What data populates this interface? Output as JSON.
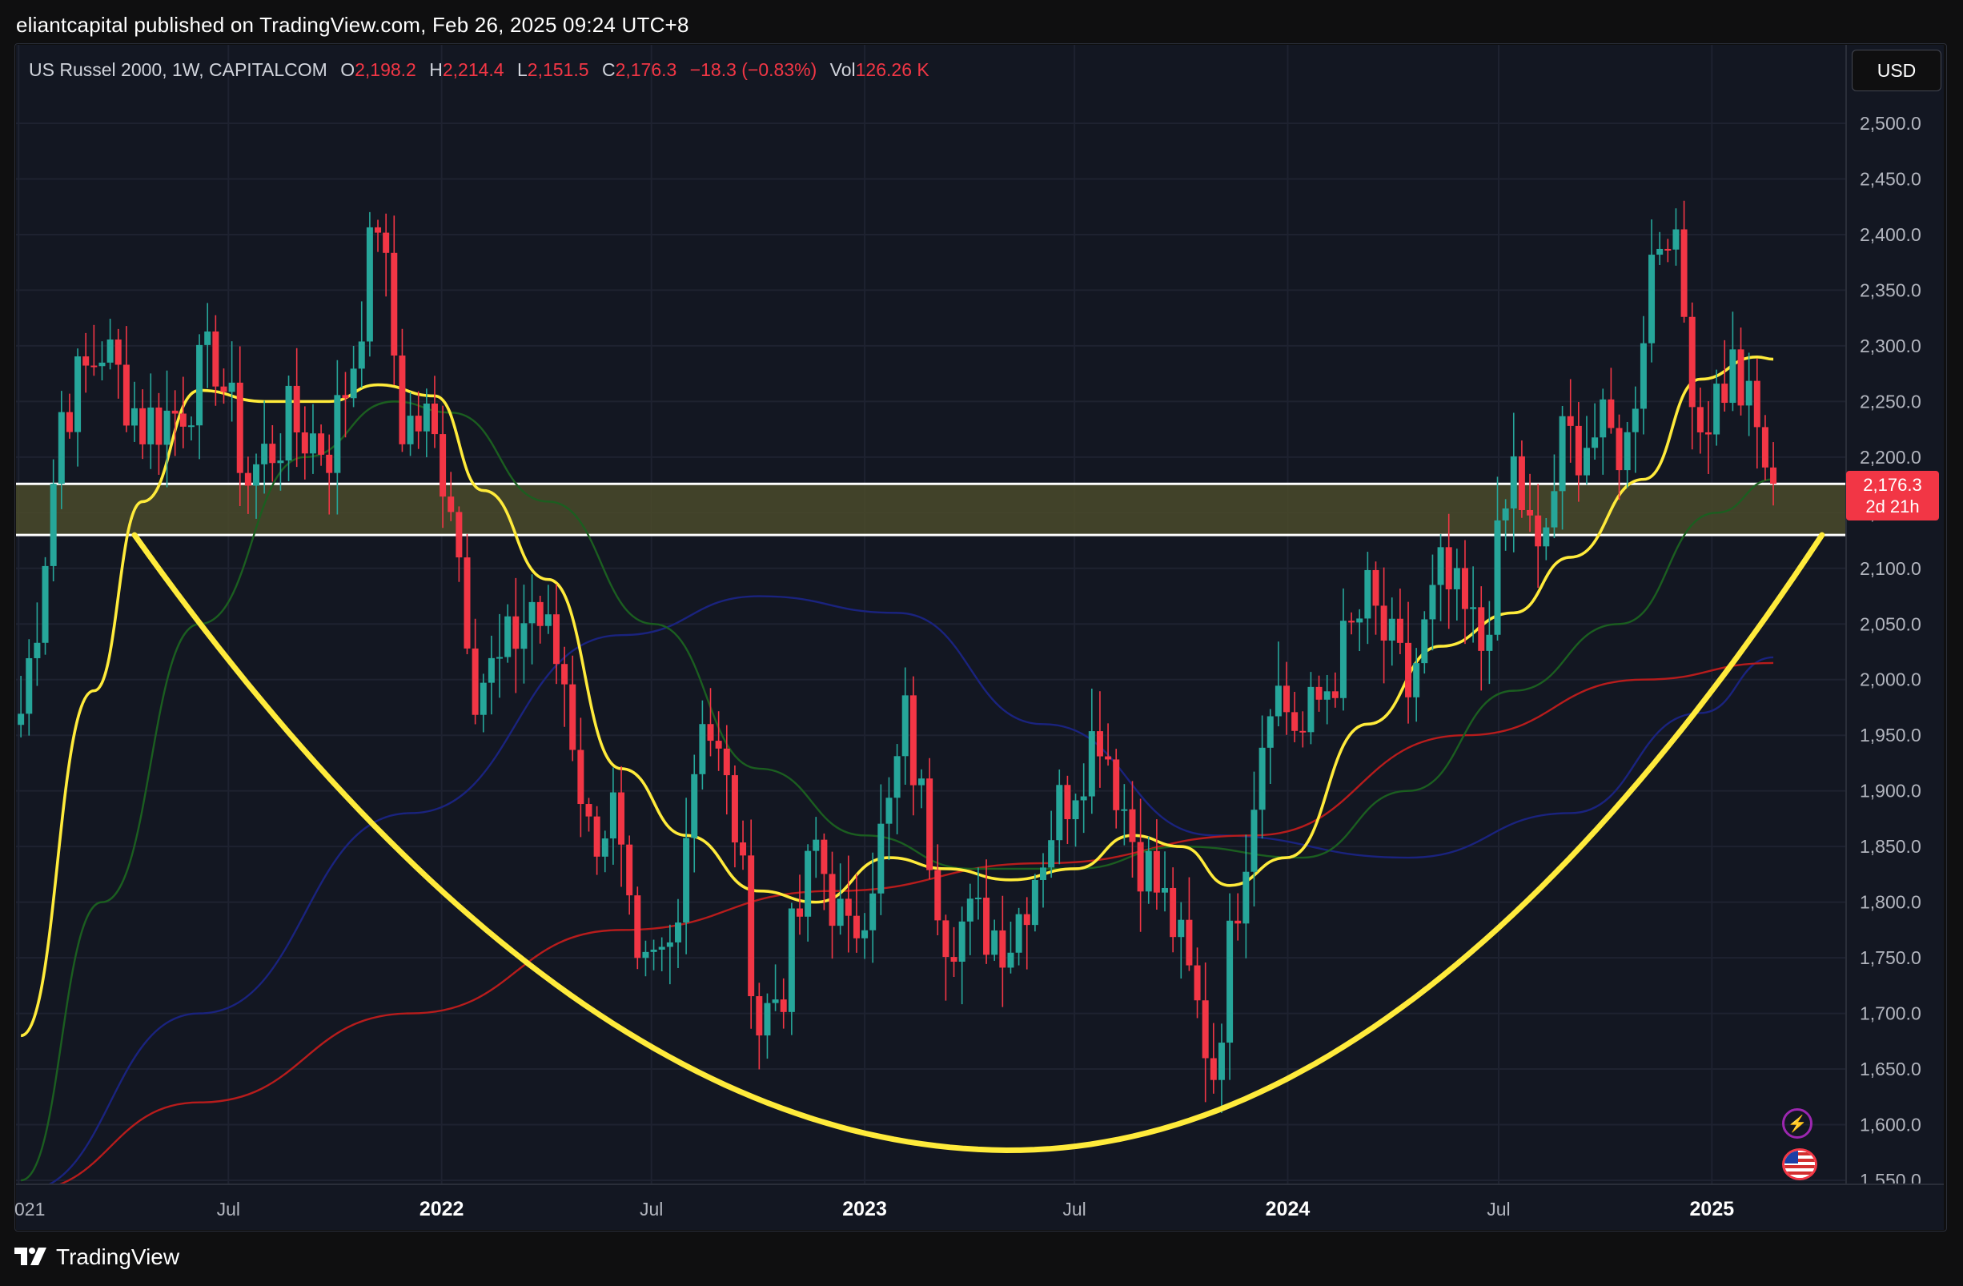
{
  "header": {
    "publish_line": "eliantcapital published on TradingView.com, Feb 26, 2025 09:24 UTC+8"
  },
  "legend": {
    "symbol": "US Russel 2000, 1W, CAPITALCOM",
    "o_label": "O",
    "o": "2,198.2",
    "h_label": "H",
    "h": "2,214.4",
    "l_label": "L",
    "l": "2,151.5",
    "c_label": "C",
    "c": "2,176.3",
    "change": "−18.3 (−0.83%)",
    "vol_label": "Vol",
    "vol": "126.26 K"
  },
  "currency_button": "USD",
  "last_price": {
    "price": "2,176.3",
    "countdown": "2d 21h"
  },
  "footer": {
    "brand": "TradingView"
  },
  "colors": {
    "up": "#26a69a",
    "down": "#f23645",
    "background": "#131722",
    "ma_fast": "#ffeb3b",
    "ma_mid": "#1b5e20",
    "ma_slow": "#b71c1c",
    "ma_long": "#0d1a7a",
    "cup": "#ffeb3b",
    "zone": "#4a4a2a"
  },
  "icons": [
    "lightning-icon",
    "us-flag-icon"
  ],
  "chart_data": {
    "type": "candlestick",
    "interval": "1W",
    "ylim": [
      1550,
      2500
    ],
    "y_ticks": [
      "2,500.0",
      "2,450.0",
      "2,400.0",
      "2,350.0",
      "2,300.0",
      "2,250.0",
      "2,200.0",
      "2,150.0",
      "2,100.0",
      "2,050.0",
      "2,000.0",
      "1,950.0",
      "1,900.0",
      "1,850.0",
      "1,800.0",
      "1,750.0",
      "1,700.0",
      "1,650.0",
      "1,600.0",
      "1,550.0"
    ],
    "x_ticks": [
      "021",
      "Jul",
      "2022",
      "Jul",
      "2023",
      "Jul",
      "2024",
      "Jul",
      "2025"
    ],
    "x_tick_dates": [
      "2021-01-01",
      "2021-07-01",
      "2022-01-01",
      "2022-07-01",
      "2023-01-01",
      "2023-07-01",
      "2024-01-01",
      "2024-07-01",
      "2025-01-01"
    ],
    "x_range": [
      "2020-12-27",
      "2025-04-13"
    ],
    "support_zone": [
      2130,
      2176
    ],
    "cup_curve": {
      "start": [
        "2021-04-11",
        2130
      ],
      "bottom": [
        "2023-05-07",
        1577
      ],
      "end": [
        "2025-04-06",
        2130
      ]
    },
    "anchors": [
      [
        "2021-01-03",
        1970
      ],
      [
        "2021-01-17",
        2060
      ],
      [
        "2021-02-07",
        2240
      ],
      [
        "2021-03-14",
        2300
      ],
      [
        "2021-04-18",
        2230
      ],
      [
        "2021-05-16",
        2240
      ],
      [
        "2021-06-20",
        2290
      ],
      [
        "2021-07-18",
        2180
      ],
      [
        "2021-08-22",
        2230
      ],
      [
        "2021-09-26",
        2210
      ],
      [
        "2021-10-17",
        2290
      ],
      [
        "2021-11-07",
        2420
      ],
      [
        "2021-11-28",
        2230
      ],
      [
        "2021-12-19",
        2230
      ],
      [
        "2022-01-09",
        2170
      ],
      [
        "2022-01-30",
        2000
      ],
      [
        "2022-02-20",
        2010
      ],
      [
        "2022-03-20",
        2070
      ],
      [
        "2022-04-17",
        2000
      ],
      [
        "2022-05-08",
        1860
      ],
      [
        "2022-05-29",
        1880
      ],
      [
        "2022-06-19",
        1720
      ],
      [
        "2022-07-17",
        1760
      ],
      [
        "2022-08-14",
        1980
      ],
      [
        "2022-09-11",
        1870
      ],
      [
        "2022-10-02",
        1690
      ],
      [
        "2022-10-23",
        1730
      ],
      [
        "2022-11-20",
        1850
      ],
      [
        "2022-12-18",
        1760
      ],
      [
        "2023-01-22",
        1880
      ],
      [
        "2023-02-05",
        1960
      ],
      [
        "2023-03-12",
        1780
      ],
      [
        "2023-04-09",
        1780
      ],
      [
        "2023-05-07",
        1770
      ],
      [
        "2023-06-11",
        1870
      ],
      [
        "2023-07-23",
        1960
      ],
      [
        "2023-08-20",
        1860
      ],
      [
        "2023-09-24",
        1780
      ],
      [
        "2023-10-29",
        1650
      ],
      [
        "2023-11-19",
        1810
      ],
      [
        "2023-12-17",
        2000
      ],
      [
        "2024-01-14",
        1950
      ],
      [
        "2024-02-11",
        2010
      ],
      [
        "2024-03-10",
        2070
      ],
      [
        "2024-04-14",
        1990
      ],
      [
        "2024-05-12",
        2090
      ],
      [
        "2024-06-16",
        2030
      ],
      [
        "2024-07-14",
        2190
      ],
      [
        "2024-08-04",
        2100
      ],
      [
        "2024-08-25",
        2210
      ],
      [
        "2024-09-22",
        2220
      ],
      [
        "2024-10-20",
        2210
      ],
      [
        "2024-11-10",
        2380
      ],
      [
        "2024-11-24",
        2420
      ],
      [
        "2024-12-22",
        2230
      ],
      [
        "2025-01-19",
        2280
      ],
      [
        "2025-02-09",
        2220
      ],
      [
        "2025-02-23",
        2176
      ]
    ],
    "ma_fast": [
      [
        "2021-01-03",
        1680
      ],
      [
        "2021-03-07",
        1990
      ],
      [
        "2021-04-18",
        2160
      ],
      [
        "2021-06-06",
        2260
      ],
      [
        "2021-08-01",
        2250
      ],
      [
        "2021-09-26",
        2250
      ],
      [
        "2021-11-07",
        2265
      ],
      [
        "2021-12-26",
        2255
      ],
      [
        "2022-02-06",
        2170
      ],
      [
        "2022-04-03",
        2090
      ],
      [
        "2022-06-05",
        1920
      ],
      [
        "2022-07-31",
        1860
      ],
      [
        "2022-10-02",
        1810
      ],
      [
        "2022-11-20",
        1800
      ],
      [
        "2023-01-22",
        1840
      ],
      [
        "2023-03-12",
        1830
      ],
      [
        "2023-05-07",
        1820
      ],
      [
        "2023-07-02",
        1830
      ],
      [
        "2023-08-20",
        1860
      ],
      [
        "2023-10-01",
        1850
      ],
      [
        "2023-11-12",
        1815
      ],
      [
        "2023-12-31",
        1840
      ],
      [
        "2024-03-10",
        1960
      ],
      [
        "2024-05-12",
        2030
      ],
      [
        "2024-07-14",
        2060
      ],
      [
        "2024-09-01",
        2110
      ],
      [
        "2024-11-03",
        2180
      ],
      [
        "2024-12-22",
        2270
      ],
      [
        "2025-02-09",
        2290
      ],
      [
        "2025-02-23",
        2288
      ]
    ],
    "ma_mid": [
      [
        "2021-01-03",
        1550
      ],
      [
        "2021-03-14",
        1800
      ],
      [
        "2021-06-06",
        2050
      ],
      [
        "2021-09-05",
        2200
      ],
      [
        "2021-11-21",
        2250
      ],
      [
        "2022-01-09",
        2240
      ],
      [
        "2022-04-03",
        2160
      ],
      [
        "2022-07-03",
        2050
      ],
      [
        "2022-10-02",
        1920
      ],
      [
        "2023-01-01",
        1860
      ],
      [
        "2023-04-02",
        1830
      ],
      [
        "2023-07-02",
        1830
      ],
      [
        "2023-10-01",
        1850
      ],
      [
        "2024-01-14",
        1840
      ],
      [
        "2024-04-14",
        1900
      ],
      [
        "2024-07-14",
        1990
      ],
      [
        "2024-10-13",
        2050
      ],
      [
        "2025-01-05",
        2150
      ],
      [
        "2025-02-23",
        2180
      ]
    ],
    "ma_slow": [
      [
        "2021-01-03",
        1540
      ],
      [
        "2021-06-06",
        1620
      ],
      [
        "2021-12-05",
        1700
      ],
      [
        "2022-06-05",
        1775
      ],
      [
        "2022-12-04",
        1810
      ],
      [
        "2023-06-04",
        1835
      ],
      [
        "2023-12-03",
        1860
      ],
      [
        "2024-06-02",
        1950
      ],
      [
        "2024-11-03",
        2000
      ],
      [
        "2025-02-23",
        2015
      ]
    ],
    "ma_long": [
      [
        "2021-01-03",
        1540
      ],
      [
        "2021-06-06",
        1700
      ],
      [
        "2021-12-05",
        1880
      ],
      [
        "2022-06-05",
        2040
      ],
      [
        "2022-10-02",
        2075
      ],
      [
        "2023-01-29",
        2060
      ],
      [
        "2023-06-04",
        1960
      ],
      [
        "2023-10-29",
        1860
      ],
      [
        "2024-04-14",
        1840
      ],
      [
        "2024-09-01",
        1880
      ],
      [
        "2024-12-22",
        1970
      ],
      [
        "2025-02-23",
        2020
      ]
    ]
  }
}
